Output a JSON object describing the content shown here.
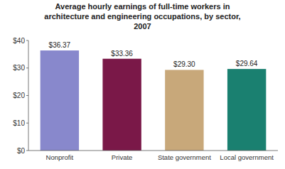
{
  "chart_data": {
    "type": "bar",
    "title": "Average hourly earnings of full-time workers in\narchitecture and engineering occupations, by sector,\n2007",
    "categories": [
      "Nonprofit",
      "Private",
      "State government",
      "Local government"
    ],
    "values": [
      36.37,
      33.36,
      29.3,
      29.64
    ],
    "value_labels": [
      "$36.37",
      "$33.36",
      "$29.30",
      "$29.64"
    ],
    "data_labels": true,
    "colors": [
      "#8888cc",
      "#7a1848",
      "#c8a87a",
      "#1a8070"
    ],
    "ylim": [
      0,
      40
    ],
    "yticks": [
      {
        "value": 0,
        "label": "$0"
      },
      {
        "value": 10,
        "label": "$10"
      },
      {
        "value": 20,
        "label": "$20"
      },
      {
        "value": 30,
        "label": "$30"
      },
      {
        "value": 40,
        "label": "$40"
      }
    ],
    "grid": false
  }
}
